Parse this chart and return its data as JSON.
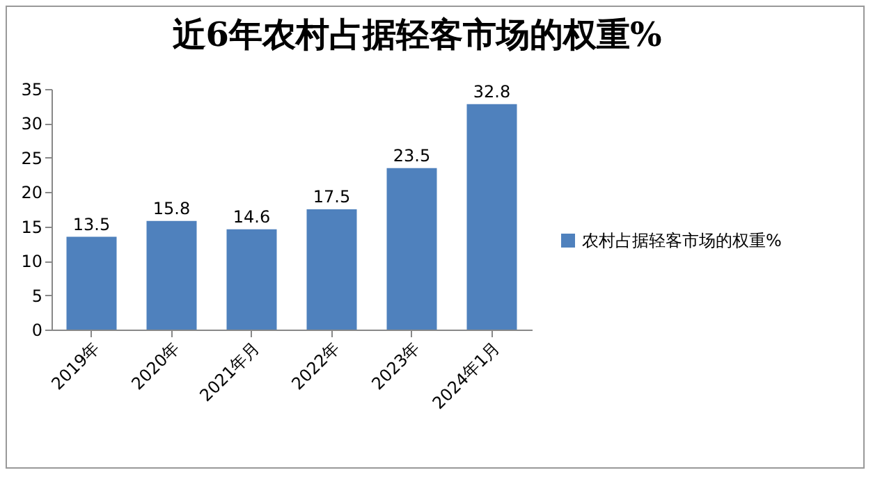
{
  "chart_data": {
    "type": "bar",
    "title": "近6年农村占据轻客市场的权重%",
    "categories": [
      "2019年",
      "2020年",
      "2021年月",
      "2022年",
      "2023年",
      "2024年1月"
    ],
    "series": [
      {
        "name": "农村占据轻客市场的权重%",
        "color": "#4f81bd",
        "values": [
          13.5,
          15.8,
          14.6,
          17.5,
          23.5,
          32.8
        ]
      }
    ],
    "ylim": [
      0,
      35
    ],
    "yticks": [
      0,
      5,
      10,
      15,
      20,
      25,
      30,
      35
    ],
    "grid": false,
    "legend": "right",
    "data_labels": true
  }
}
